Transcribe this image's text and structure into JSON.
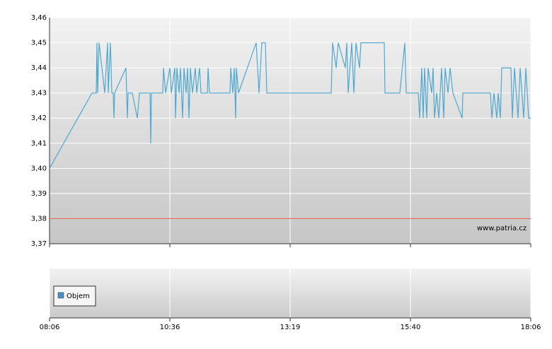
{
  "chart_data": {
    "type": "line",
    "x": [
      0,
      60,
      66,
      67,
      68,
      70,
      78,
      82,
      83,
      86,
      88,
      90,
      91,
      92,
      108,
      110,
      111,
      117,
      124,
      127,
      142,
      143,
      144,
      160,
      161,
      164,
      170,
      172,
      177,
      178,
      180,
      183,
      185,
      188,
      190,
      193,
      195,
      197,
      199,
      202,
      206,
      208,
      212,
      214,
      223,
      224,
      226,
      255,
      256,
      259,
      261,
      263,
      264,
      267,
      292,
      296,
      300,
      305,
      307,
      398,
      400,
      405,
      408,
      418,
      420,
      422,
      427,
      430,
      433,
      438,
      440,
      473,
      474,
      495,
      502,
      504,
      521,
      523,
      526,
      528,
      530,
      533,
      535,
      540,
      542,
      544,
      547,
      550,
      554,
      557,
      559,
      563,
      566,
      570,
      583,
      584,
      623,
      625,
      628,
      632,
      634,
      637,
      639,
      652,
      654,
      657,
      662,
      665,
      670,
      673,
      677,
      680
    ],
    "values": [
      3.4,
      3.43,
      3.43,
      3.45,
      3.43,
      3.45,
      3.43,
      3.45,
      3.43,
      3.45,
      3.43,
      3.43,
      3.42,
      3.43,
      3.44,
      3.42,
      3.43,
      3.43,
      3.42,
      3.43,
      3.43,
      3.41,
      3.43,
      3.43,
      3.44,
      3.43,
      3.44,
      3.43,
      3.44,
      3.42,
      3.44,
      3.43,
      3.44,
      3.42,
      3.44,
      3.43,
      3.44,
      3.42,
      3.44,
      3.43,
      3.44,
      3.43,
      3.44,
      3.43,
      3.43,
      3.44,
      3.43,
      3.43,
      3.44,
      3.43,
      3.44,
      3.42,
      3.44,
      3.43,
      3.45,
      3.43,
      3.45,
      3.45,
      3.43,
      3.43,
      3.45,
      3.44,
      3.45,
      3.44,
      3.45,
      3.43,
      3.45,
      3.43,
      3.45,
      3.44,
      3.45,
      3.45,
      3.43,
      3.43,
      3.45,
      3.43,
      3.43,
      3.42,
      3.44,
      3.42,
      3.44,
      3.42,
      3.44,
      3.43,
      3.44,
      3.42,
      3.43,
      3.42,
      3.44,
      3.42,
      3.44,
      3.43,
      3.44,
      3.43,
      3.42,
      3.43,
      3.43,
      3.42,
      3.43,
      3.42,
      3.43,
      3.42,
      3.44,
      3.44,
      3.42,
      3.44,
      3.42,
      3.44,
      3.42,
      3.44,
      3.42,
      3.42
    ],
    "color": "#4fa8cf",
    "xlim": [
      0,
      680
    ],
    "xticks": [
      {
        "value": 0,
        "label": "08:06"
      },
      {
        "value": 170,
        "label": "10:36"
      },
      {
        "value": 340,
        "label": "13:19"
      },
      {
        "value": 510,
        "label": "15:40"
      },
      {
        "value": 680,
        "label": "18:06"
      }
    ],
    "ylim": [
      3.37,
      3.46
    ],
    "yticks": [
      {
        "value": 3.37,
        "label": "3,37"
      },
      {
        "value": 3.38,
        "label": "3,38"
      },
      {
        "value": 3.39,
        "label": "3,39"
      },
      {
        "value": 3.4,
        "label": "3,40"
      },
      {
        "value": 3.41,
        "label": "3,41"
      },
      {
        "value": 3.42,
        "label": "3,42"
      },
      {
        "value": 3.43,
        "label": "3,43"
      },
      {
        "value": 3.44,
        "label": "3,44"
      },
      {
        "value": 3.45,
        "label": "3,45"
      },
      {
        "value": 3.46,
        "label": "3,46"
      }
    ],
    "grid": true,
    "reference_line": {
      "value": 3.38,
      "color": "#e86a5a"
    },
    "watermark": "www.patria.cz",
    "volume_legend": {
      "label": "Objem",
      "color": "#4a90c0"
    }
  }
}
